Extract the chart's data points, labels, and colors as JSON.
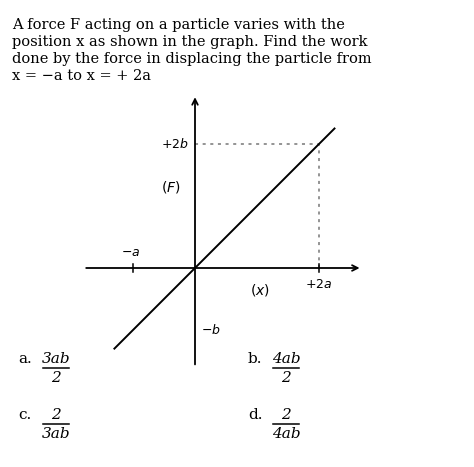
{
  "title_lines": [
    "A force F acting on a particle varies with the",
    "position x as shown in the graph. Find the work",
    "done by the force in displacing the particle from",
    "x = −a to x = + 2a"
  ],
  "bg_color": "#ffffff",
  "line_color": "#000000",
  "dotted_color": "#777777",
  "answers": {
    "a": {
      "num": "3ab",
      "den": "2"
    },
    "b": {
      "num": "4ab",
      "den": "2"
    },
    "c": {
      "num": "2",
      "den": "3ab"
    },
    "d": {
      "num": "2",
      "den": "4ab"
    }
  }
}
